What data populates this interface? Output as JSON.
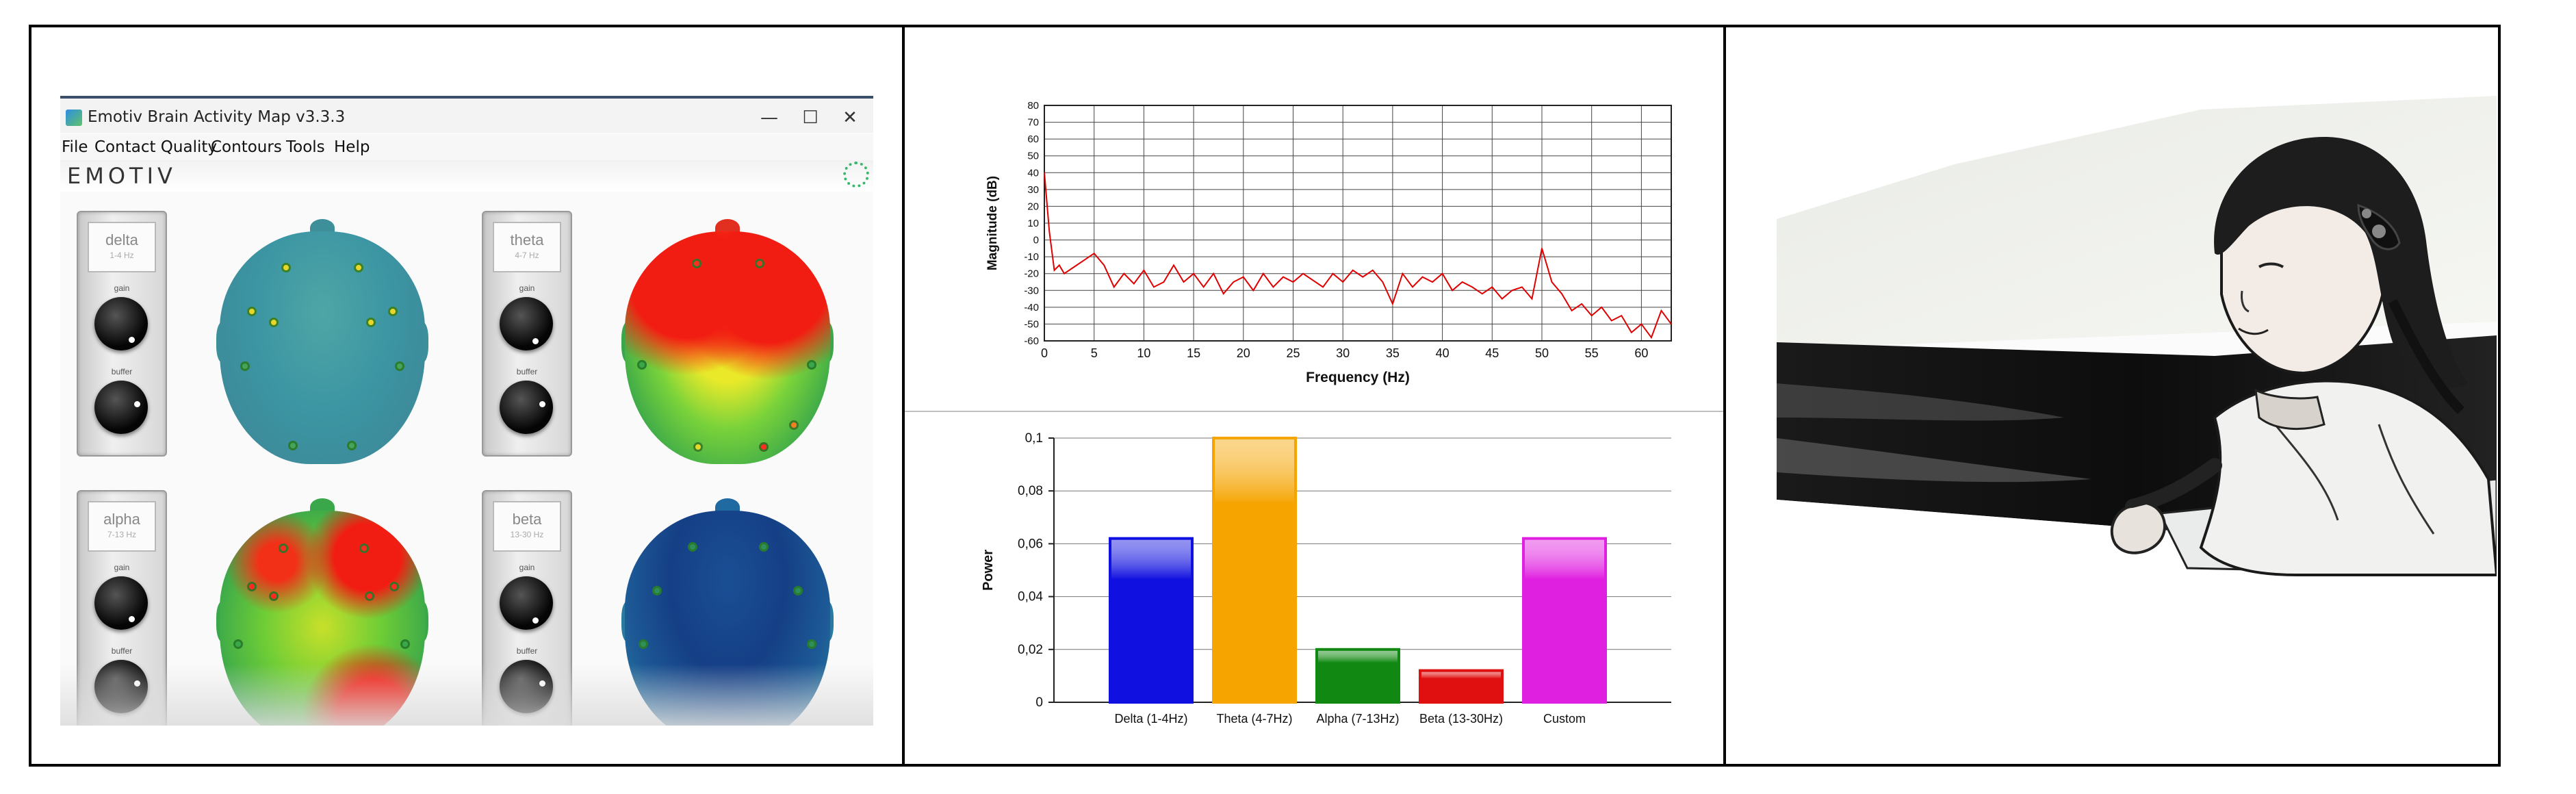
{
  "app": {
    "title": "Emotiv Brain Activity Map v3.3.3",
    "window_buttons": [
      "—",
      "☐",
      "✕"
    ],
    "menu": [
      "File",
      "Contact Quality",
      "Contours",
      "Tools",
      "Help"
    ],
    "brand": "EMOTIV",
    "bands": [
      {
        "name": "delta",
        "range": "1-4 Hz",
        "gain_label": "gain",
        "buffer_label": "buffer"
      },
      {
        "name": "theta",
        "range": "4-7 Hz",
        "gain_label": "gain",
        "buffer_label": "buffer"
      },
      {
        "name": "alpha",
        "range": "7-13 Hz",
        "gain_label": "gain",
        "buffer_label": "buffer"
      },
      {
        "name": "beta",
        "range": "13-30 Hz",
        "gain_label": "gain",
        "buffer_label": "buffer"
      }
    ]
  },
  "chart_data": [
    {
      "type": "line",
      "xlabel": "Frequency (Hz)",
      "ylabel": "Magnitude (dB)",
      "xlim": [
        0,
        63
      ],
      "ylim": [
        -60,
        80
      ],
      "grid": true,
      "x_ticks": [
        "0",
        "5",
        "10",
        "15",
        "20",
        "25",
        "30",
        "35",
        "40",
        "45",
        "50",
        "55",
        "60"
      ],
      "y_ticks": [
        "80",
        "70",
        "60",
        "50",
        "40",
        "30",
        "20",
        "10",
        "0",
        "-10",
        "-20",
        "-30",
        "-40",
        "-50",
        "-60"
      ],
      "series": [
        {
          "color": "#e00000",
          "x": [
            0,
            0.5,
            1,
            1.5,
            2,
            3,
            4,
            5,
            6,
            7,
            8,
            9,
            10,
            11,
            12,
            13,
            14,
            15,
            16,
            17,
            18,
            19,
            20,
            21,
            22,
            23,
            24,
            25,
            26,
            27,
            28,
            29,
            30,
            31,
            32,
            33,
            34,
            35,
            36,
            37,
            38,
            39,
            40,
            41,
            42,
            43,
            44,
            45,
            46,
            47,
            48,
            49,
            50,
            51,
            52,
            53,
            54,
            55,
            56,
            57,
            58,
            59,
            60,
            61,
            62,
            63
          ],
          "y": [
            40,
            5,
            -18,
            -15,
            -20,
            -16,
            -12,
            -8,
            -15,
            -28,
            -20,
            -26,
            -18,
            -28,
            -25,
            -15,
            -25,
            -20,
            -28,
            -20,
            -32,
            -25,
            -22,
            -30,
            -20,
            -28,
            -22,
            -25,
            -20,
            -24,
            -28,
            -20,
            -25,
            -18,
            -22,
            -18,
            -25,
            -38,
            -20,
            -28,
            -22,
            -25,
            -20,
            -30,
            -25,
            -28,
            -32,
            -28,
            -35,
            -30,
            -28,
            -35,
            -5,
            -25,
            -32,
            -42,
            -38,
            -45,
            -40,
            -48,
            -45,
            -55,
            -50,
            -58,
            -42,
            -50
          ]
        }
      ]
    },
    {
      "type": "bar",
      "ylabel": "Power",
      "ylim": [
        0,
        0.1
      ],
      "y_ticks": [
        "0,1",
        "0,08",
        "0,06",
        "0,04",
        "0,02",
        "0"
      ],
      "grid": true,
      "categories": [
        "Delta (1-4Hz)",
        "Theta (4-7Hz)",
        "Alpha (7-13Hz)",
        "Beta (13-30Hz)",
        "Custom"
      ],
      "values": [
        0.062,
        0.1,
        0.02,
        0.012,
        0.062
      ],
      "colors": [
        "#1010e0",
        "#f5a400",
        "#118811",
        "#e01010",
        "#e020e0"
      ]
    }
  ]
}
